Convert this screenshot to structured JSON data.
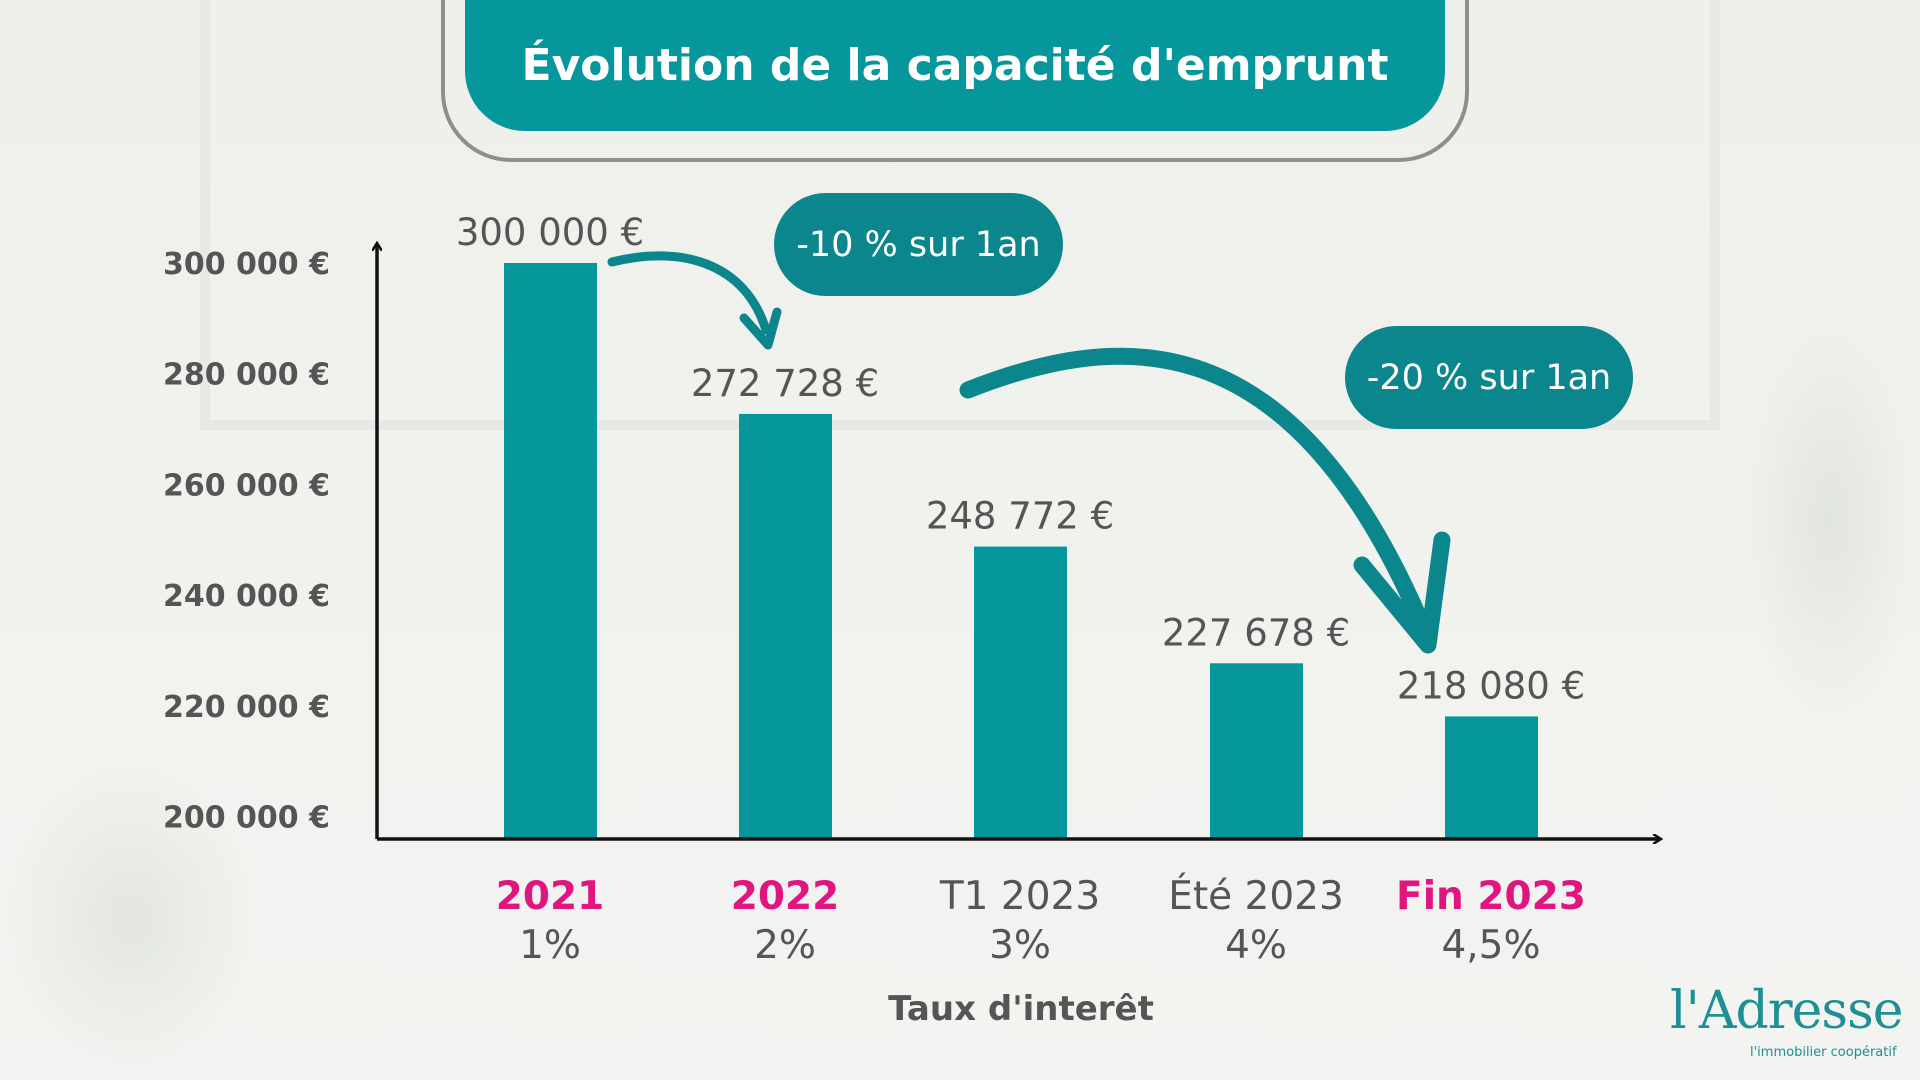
{
  "chart_data": {
    "type": "bar",
    "title": "Évolution de la capacité d'emprunt",
    "xlabel": "Taux d'interêt",
    "ylabel": "",
    "ylim": [
      200000,
      300000
    ],
    "yticks": [
      "300 000 €",
      "280 000 €",
      "260 000 €",
      "240 000 €",
      "220 000 €",
      "200 000 €"
    ],
    "ytick_values": [
      300000,
      280000,
      260000,
      240000,
      220000,
      200000
    ],
    "categories": [
      "2021",
      "2022",
      "T1 2023",
      "Été 2023",
      "Fin 2023"
    ],
    "rates": [
      "1%",
      "2%",
      "3%",
      "4%",
      "4,5%"
    ],
    "values": [
      300000,
      272728,
      248772,
      227678,
      218080
    ],
    "value_labels": [
      "300 000 €",
      "272 728 €",
      "248 772 €",
      "227 678 €",
      "218 080 €"
    ],
    "category_highlight": [
      true,
      true,
      false,
      false,
      true
    ],
    "annotations": [
      "-10 % sur 1an",
      "-20 % sur 1an"
    ],
    "grid": false,
    "colors": {
      "bar": "#05979b",
      "bubble": "#0b868c",
      "highlight": "#e0157f",
      "text": "#555555"
    }
  },
  "logo": {
    "name": "l'Adresse",
    "tagline": "l'immobilier coopératif"
  }
}
